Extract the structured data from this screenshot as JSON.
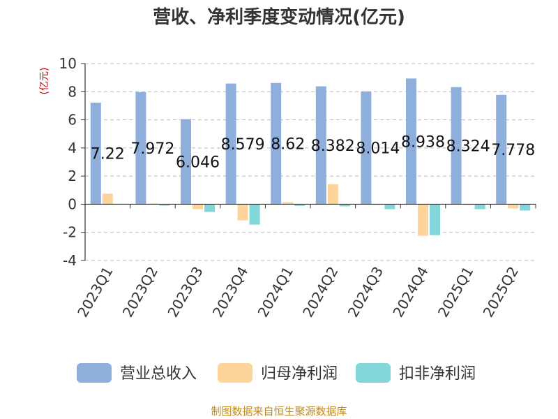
{
  "chart_data": {
    "type": "bar",
    "title": "营收、净利季度变动情况(亿元)",
    "ylabel": "(亿元)",
    "ylim": [
      -4,
      10
    ],
    "yticks": [
      -4,
      -2,
      0,
      2,
      4,
      6,
      8,
      10
    ],
    "grid": true,
    "legend_position": "bottom",
    "categories": [
      "2023Q1",
      "2023Q2",
      "2023Q3",
      "2023Q4",
      "2024Q1",
      "2024Q2",
      "2024Q3",
      "2024Q4",
      "2025Q1",
      "2025Q2"
    ],
    "series": [
      {
        "name": "营业总收入",
        "color": "#8eaedc",
        "values": [
          7.22,
          7.972,
          6.046,
          8.579,
          8.62,
          8.382,
          8.014,
          8.938,
          8.324,
          7.778
        ],
        "data_labels": [
          "7.22",
          "7.972",
          "6.046",
          "8.579",
          "8.62",
          "8.382",
          "8.014",
          "8.938",
          "8.324",
          "7.778"
        ]
      },
      {
        "name": "归母净利润",
        "color": "#fdd59a",
        "values": [
          0.75,
          0.04,
          -0.35,
          -1.15,
          0.15,
          1.42,
          -0.05,
          -2.25,
          -0.05,
          -0.3
        ]
      },
      {
        "name": "扣非净利润",
        "color": "#83d6d9",
        "values": [
          0.02,
          -0.1,
          -0.55,
          -1.45,
          -0.12,
          -0.15,
          -0.35,
          -2.2,
          -0.35,
          -0.45
        ]
      }
    ],
    "source": "制图数据来自恒生聚源数据库"
  }
}
